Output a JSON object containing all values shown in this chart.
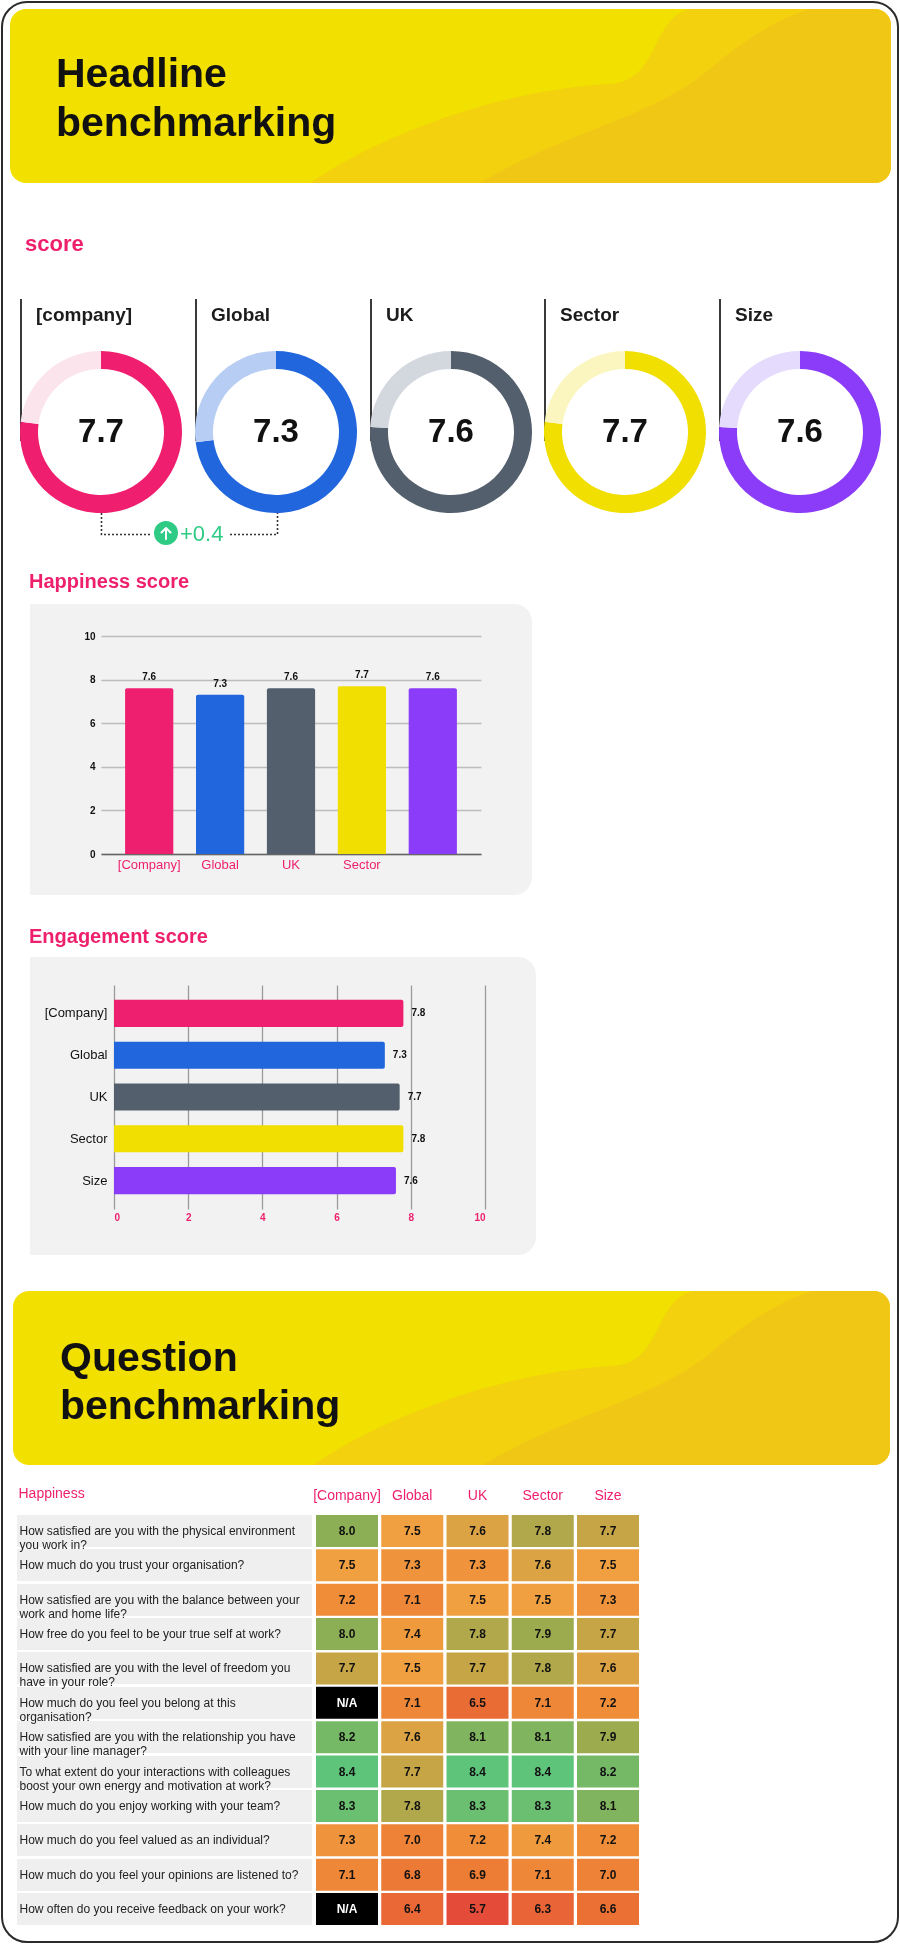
{
  "chart_data": [
    {
      "type": "other",
      "title": "Headline benchmarking"
    },
    {
      "type": "other",
      "title": "score"
    },
    {
      "type": "donut",
      "title": "[company]",
      "categories": [
        null,
        null
      ],
      "values": [
        7.7,
        2.3
      ],
      "colors": [
        "#f01e6e",
        "#fce4ed"
      ],
      "value_labels": [
        "7.7",
        null
      ],
      "annotations": [
        "+0.4"
      ]
    },
    {
      "type": "donut",
      "title": "Global",
      "categories": [
        null,
        null
      ],
      "values": [
        7.3,
        2.7
      ],
      "colors": [
        "#2166dd",
        "#b8cdf3"
      ],
      "value_labels": [
        "7.3",
        null
      ]
    },
    {
      "type": "donut",
      "title": "UK",
      "categories": [
        null,
        null
      ],
      "values": [
        7.6,
        2.4
      ],
      "colors": [
        "#535f6d",
        "#d3d7de"
      ],
      "value_labels": [
        "7.6",
        null
      ]
    },
    {
      "type": "donut",
      "title": "Sector",
      "categories": [
        null,
        null
      ],
      "values": [
        7.7,
        2.3
      ],
      "colors": [
        "#f0df00",
        "#fbf6bf"
      ],
      "value_labels": [
        "7.7",
        null
      ]
    },
    {
      "type": "donut",
      "title": "Size",
      "categories": [
        null,
        null
      ],
      "values": [
        7.6,
        2.4
      ],
      "colors": [
        "#8b3cf8",
        "#e5dcfd"
      ],
      "value_labels": [
        "7.6",
        null
      ]
    },
    {
      "type": "bar",
      "title": "Happiness score",
      "categories": [
        "[Company]",
        "Global",
        "UK",
        "Sector",
        null
      ],
      "values": [
        7.6,
        7.3,
        7.6,
        7.7,
        7.6
      ],
      "colors": [
        "#ef1f70",
        "#2166dd",
        "#535f6d",
        "#f0df00",
        "#8b3cf8"
      ],
      "ylim": [
        0,
        10
      ],
      "yticks": [
        0,
        2,
        4,
        6,
        8,
        10
      ],
      "grid": "y",
      "data_labels": true
    },
    {
      "type": "bar",
      "orientation": "horizontal",
      "title": "Engagement score",
      "categories": [
        "[Company]",
        "Global",
        "UK",
        "Sector",
        "Size"
      ],
      "values": [
        7.8,
        7.3,
        7.7,
        7.8,
        7.6
      ],
      "colors": [
        "#ef1f70",
        "#2166dd",
        "#535f6d",
        "#f0df00",
        "#8b3cf8"
      ],
      "xlim": [
        0,
        10
      ],
      "xticks": [
        0,
        2,
        4,
        6,
        8,
        10
      ],
      "grid": "x",
      "data_labels": true
    },
    {
      "type": "other",
      "title": "Question benchmarking"
    },
    {
      "type": "heatmap",
      "ylabel": "Happiness",
      "categories": [
        "[Company]",
        "Global",
        "UK",
        "Sector",
        "Size"
      ],
      "y_categories": [
        "How satisfied are you with the physical environment you work in?",
        "How much do you trust your organisation?",
        "How satisfied are you with the balance between your work and home life?",
        "How free do you feel to be your true self at work?",
        "How satisfied are you with the level of freedom you have in your role?",
        "How much do you feel you belong at this organisation?",
        "How satisfied are you with the relationship you have with your line manager?",
        "To what extent do your interactions with colleagues boost your own energy and motivation at work?",
        "How much do you enjoy working with your team?",
        "How much do you feel valued as an individual?",
        "How much do you feel your opinions are listened to?",
        "How often do you receive feedback on your work?"
      ],
      "cells": [
        [
          8.0,
          7.5,
          7.6,
          7.8,
          7.7
        ],
        [
          7.5,
          7.3,
          7.3,
          7.6,
          7.5
        ],
        [
          7.2,
          7.1,
          7.5,
          7.5,
          7.3
        ],
        [
          8.0,
          7.4,
          7.8,
          7.9,
          7.7
        ],
        [
          7.7,
          7.5,
          7.7,
          7.8,
          7.6
        ],
        [
          null,
          7.1,
          6.5,
          7.1,
          7.2
        ],
        [
          8.2,
          7.6,
          8.1,
          8.1,
          7.9
        ],
        [
          8.4,
          7.7,
          8.4,
          8.4,
          8.2
        ],
        [
          8.3,
          7.8,
          8.3,
          8.3,
          8.1
        ],
        [
          7.3,
          7.0,
          7.2,
          7.4,
          7.2
        ],
        [
          7.1,
          6.8,
          6.9,
          7.1,
          7.0
        ],
        [
          null,
          6.4,
          5.7,
          6.3,
          6.6
        ]
      ],
      "cell_labels": [
        [
          "8.0",
          "7.5",
          "7.6",
          "7.8",
          "7.7"
        ],
        [
          "7.5",
          "7.3",
          "7.3",
          "7.6",
          "7.5"
        ],
        [
          "7.2",
          "7.1",
          "7.5",
          "7.5",
          "7.3"
        ],
        [
          "8.0",
          "7.4",
          "7.8",
          "7.9",
          "7.7"
        ],
        [
          "7.7",
          "7.5",
          "7.7",
          "7.8",
          "7.6"
        ],
        [
          "N/A",
          "7.1",
          "6.5",
          "7.1",
          "7.2"
        ],
        [
          "8.2",
          "7.6",
          "8.1",
          "8.1",
          "7.9"
        ],
        [
          "8.4",
          "7.7",
          "8.4",
          "8.4",
          "8.2"
        ],
        [
          "8.3",
          "7.8",
          "8.3",
          "8.3",
          "8.1"
        ],
        [
          "7.3",
          "7.0",
          "7.2",
          "7.4",
          "7.2"
        ],
        [
          "7.1",
          "6.8",
          "6.9",
          "7.1",
          "7.0"
        ],
        [
          "N/A",
          "6.4",
          "5.7",
          "6.3",
          "6.6"
        ]
      ]
    }
  ]
}
